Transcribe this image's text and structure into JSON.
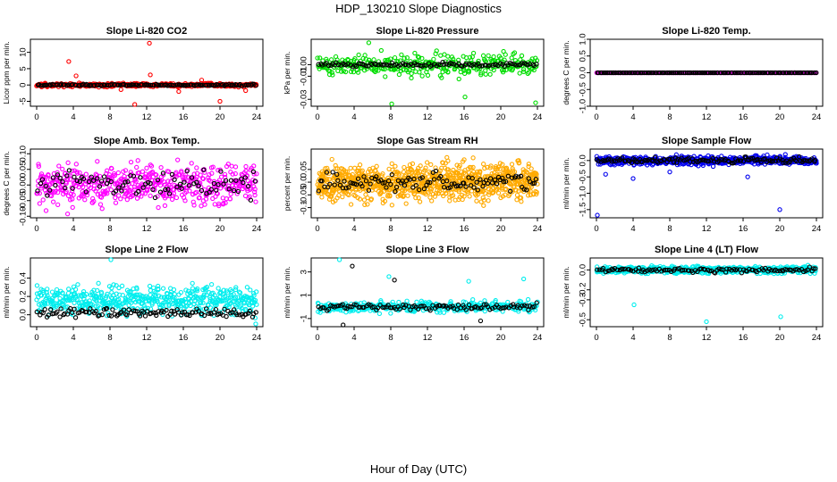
{
  "title": "HDP_130210  Slope Diagnostics",
  "xlabel": "Hour of Day (UTC)",
  "chart_data": [
    {
      "name": "co2",
      "type": "scatter",
      "title": "Slope Li-820 CO2",
      "ylabel": "Licor ppm per min.",
      "color": "#ff0000",
      "xlim": [
        0,
        24
      ],
      "xticks": [
        0,
        4,
        8,
        12,
        16,
        20,
        24
      ],
      "xtick_labels": [
        "0",
        "4",
        "8",
        "12",
        "16",
        "20",
        "24"
      ],
      "ylim": [
        -6.5,
        14
      ],
      "yticks": [
        -5,
        0,
        5,
        10
      ],
      "ytick_labels": [
        "-5",
        "0",
        "5",
        "10"
      ],
      "series": [
        {
          "name": "background",
          "center": 0,
          "spread": 0.5,
          "count": 380,
          "outliers": [
            {
              "x": 3.5,
              "y": 7.2
            },
            {
              "x": 12.3,
              "y": 12.8
            },
            {
              "x": 4.3,
              "y": 2.8
            },
            {
              "x": 10.7,
              "y": -6
            },
            {
              "x": 20,
              "y": -5
            },
            {
              "x": 15.5,
              "y": -2
            },
            {
              "x": 22.8,
              "y": -1.7
            },
            {
              "x": 9.2,
              "y": -1.4
            },
            {
              "x": 18,
              "y": 1.5
            },
            {
              "x": 12.4,
              "y": 3.1
            }
          ]
        },
        {
          "name": "black",
          "center": 0,
          "spread": 0.25,
          "count": 130,
          "outliers": []
        }
      ]
    },
    {
      "name": "pressure",
      "type": "scatter",
      "title": "Slope Li-820 Pressure",
      "ylabel": "kPa per min.",
      "color": "#00dd00",
      "xlim": [
        0,
        24
      ],
      "xticks": [
        0,
        4,
        8,
        12,
        16,
        20,
        24
      ],
      "xtick_labels": [
        "0",
        "4",
        "8",
        "12",
        "16",
        "20",
        "24"
      ],
      "ylim": [
        -0.036,
        0.022
      ],
      "yticks": [
        -0.03,
        -0.01,
        0.0
      ],
      "ytick_labels": [
        "-0.03",
        "-0.01",
        "0.00"
      ],
      "series": [
        {
          "name": "background",
          "center": 0,
          "spread": 0.009,
          "count": 340,
          "outliers": [
            {
              "x": 8.1,
              "y": -0.034
            },
            {
              "x": 16.1,
              "y": -0.028
            },
            {
              "x": 23.8,
              "y": -0.033
            },
            {
              "x": 5.6,
              "y": 0.019
            },
            {
              "x": 20.3,
              "y": 0.0115
            },
            {
              "x": 13,
              "y": 0.012
            }
          ]
        },
        {
          "name": "black",
          "center": 0,
          "spread": 0.0015,
          "count": 110,
          "outliers": []
        }
      ]
    },
    {
      "name": "temp",
      "type": "scatter",
      "title": "Slope Li-820 Temp.",
      "ylabel": "degrees C per min.",
      "color": "#cc00cc",
      "xlim": [
        0,
        24
      ],
      "xticks": [
        0,
        4,
        8,
        12,
        16,
        20,
        24
      ],
      "xtick_labels": [
        "0",
        "4",
        "8",
        "12",
        "16",
        "20",
        "24"
      ],
      "ylim": [
        -1,
        1
      ],
      "yticks": [
        -1.0,
        -0.5,
        0.0,
        0.5,
        1.0
      ],
      "ytick_labels": [
        "-1.0",
        "-0.5",
        "0.0",
        "0.5",
        "1.0"
      ],
      "series": [
        {
          "name": "background",
          "center": 0,
          "spread": 0,
          "count": 250,
          "outliers": []
        },
        {
          "name": "black",
          "center": 0,
          "spread": 0,
          "count": 140,
          "outliers": []
        }
      ]
    },
    {
      "name": "ambbox",
      "type": "scatter",
      "title": "Slope Amb. Box Temp.",
      "ylabel": "degrees C per min.",
      "color": "#ff00ff",
      "xlim": [
        0,
        24
      ],
      "xticks": [
        0,
        4,
        8,
        12,
        16,
        20,
        24
      ],
      "xtick_labels": [
        "0",
        "4",
        "8",
        "12",
        "16",
        "20",
        "24"
      ],
      "ylim": [
        -0.105,
        0.115
      ],
      "yticks": [
        -0.1,
        -0.05,
        0.0,
        0.05,
        0.1
      ],
      "ytick_labels": [
        "-0.10",
        "-0.05",
        "0.00",
        "0.05",
        "0.10"
      ],
      "series": [
        {
          "name": "background",
          "center": 0,
          "spread": 0.06,
          "count": 520,
          "outliers": []
        },
        {
          "name": "black",
          "center": 0,
          "spread": 0.045,
          "count": 90,
          "outliers": []
        }
      ]
    },
    {
      "name": "rh",
      "type": "scatter",
      "title": "Slope Gas Stream RH",
      "ylabel": "percent per min.",
      "color": "#ffaa00",
      "xlim": [
        0,
        24
      ],
      "xticks": [
        0,
        4,
        8,
        12,
        16,
        20,
        24
      ],
      "xtick_labels": [
        "0",
        "4",
        "8",
        "12",
        "16",
        "20",
        "24"
      ],
      "ylim": [
        -0.14,
        0.13
      ],
      "yticks": [
        -0.1,
        -0.05,
        0.0,
        0.05
      ],
      "ytick_labels": [
        "-0.1",
        "-0.05",
        "0.0",
        "0.05"
      ],
      "series": [
        {
          "name": "background",
          "center": 0,
          "spread": 0.07,
          "count": 900,
          "outliers": []
        },
        {
          "name": "black",
          "center": 0,
          "spread": 0.04,
          "count": 110,
          "outliers": []
        }
      ]
    },
    {
      "name": "sampleflow",
      "type": "scatter",
      "title": "Slope Sample Flow",
      "ylabel": "ml/min per min.",
      "color": "#0000ee",
      "xlim": [
        0,
        24
      ],
      "xticks": [
        0,
        4,
        8,
        12,
        16,
        20,
        24
      ],
      "xtick_labels": [
        "0",
        "4",
        "8",
        "12",
        "16",
        "20",
        "24"
      ],
      "ylim": [
        -1.75,
        0.35
      ],
      "yticks": [
        -1.5,
        -1.0,
        -0.5,
        0.0
      ],
      "ytick_labels": [
        "-1.5",
        "-1.0",
        "-0.5",
        "0.0"
      ],
      "series": [
        {
          "name": "background",
          "center": 0,
          "spread": 0.12,
          "count": 600,
          "outliers": [
            {
              "x": 0.1,
              "y": -1.67
            },
            {
              "x": 20,
              "y": -1.5
            },
            {
              "x": 4,
              "y": -0.55
            },
            {
              "x": 16.5,
              "y": -0.5
            },
            {
              "x": 1,
              "y": -0.42
            },
            {
              "x": 8,
              "y": -0.35
            }
          ]
        },
        {
          "name": "black",
          "center": 0,
          "spread": 0.09,
          "count": 130,
          "outliers": []
        }
      ]
    },
    {
      "name": "line2",
      "type": "scatter",
      "title": "Slope Line 2 Flow",
      "ylabel": "ml/min per min.",
      "color": "#00eeee",
      "xlim": [
        0,
        24
      ],
      "xticks": [
        0,
        4,
        8,
        12,
        16,
        20,
        24
      ],
      "xtick_labels": [
        "0",
        "4",
        "8",
        "12",
        "16",
        "20",
        "24"
      ],
      "ylim": [
        -0.13,
        0.62
      ],
      "yticks": [
        0.0,
        0.2,
        0.4
      ],
      "ytick_labels": [
        "0.0",
        "0.2",
        "0.4"
      ],
      "series": [
        {
          "name": "background",
          "center": 0.16,
          "spread": 0.14,
          "count": 520,
          "outliers": [
            {
              "x": 8.1,
              "y": 0.6
            },
            {
              "x": 23.9,
              "y": -0.1
            }
          ]
        },
        {
          "name": "black",
          "center": 0.02,
          "spread": 0.05,
          "count": 120,
          "outliers": []
        }
      ]
    },
    {
      "name": "line3",
      "type": "scatter",
      "title": "Slope Line 3 Flow",
      "ylabel": "ml/min per min.",
      "color": "#00eeee",
      "xlim": [
        0,
        24
      ],
      "xticks": [
        0,
        4,
        8,
        12,
        16,
        20,
        24
      ],
      "xtick_labels": [
        "0",
        "4",
        "8",
        "12",
        "16",
        "20",
        "24"
      ],
      "ylim": [
        -1.7,
        4.2
      ],
      "yticks": [
        -1,
        1,
        3
      ],
      "ytick_labels": [
        "-1",
        "1",
        "3"
      ],
      "series": [
        {
          "name": "background",
          "center": 0,
          "spread": 0.45,
          "count": 360,
          "outliers": [
            {
              "x": 2.4,
              "y": 4.1
            },
            {
              "x": 7.8,
              "y": 2.6
            },
            {
              "x": 16.5,
              "y": 2.2
            },
            {
              "x": 22.5,
              "y": 2.4
            }
          ]
        },
        {
          "name": "black",
          "center": 0,
          "spread": 0.25,
          "count": 110,
          "outliers": [
            {
              "x": 3.8,
              "y": 3.5
            },
            {
              "x": 2.8,
              "y": -1.55
            },
            {
              "x": 17.8,
              "y": -1.2
            },
            {
              "x": 8.4,
              "y": 2.3
            }
          ]
        }
      ]
    },
    {
      "name": "line4",
      "type": "scatter",
      "title": "Slope Line 4 (LT) Flow",
      "ylabel": "ml/min per min.",
      "color": "#00eeee",
      "xlim": [
        0,
        24
      ],
      "xticks": [
        0,
        4,
        8,
        12,
        16,
        20,
        24
      ],
      "xtick_labels": [
        "0",
        "4",
        "8",
        "12",
        "16",
        "20",
        "24"
      ],
      "ylim": [
        -0.57,
        0.12
      ],
      "yticks": [
        -0.5,
        -0.3,
        -0.2,
        0.0
      ],
      "ytick_labels": [
        "-0.5",
        "-0.3",
        "-0.2",
        "0.0"
      ],
      "series": [
        {
          "name": "background",
          "center": 0,
          "spread": 0.035,
          "count": 520,
          "outliers": [
            {
              "x": 4.1,
              "y": -0.35
            },
            {
              "x": 12,
              "y": -0.52
            },
            {
              "x": 20.1,
              "y": -0.47
            }
          ]
        },
        {
          "name": "black",
          "center": 0,
          "spread": 0.025,
          "count": 110,
          "outliers": []
        }
      ]
    }
  ]
}
